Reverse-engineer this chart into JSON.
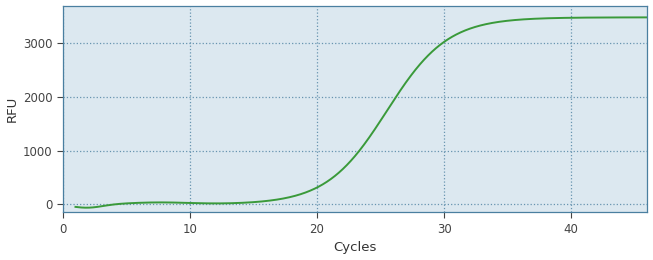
{
  "title": "",
  "xlabel": "Cycles",
  "ylabel": "RFU",
  "line_color": "#3a9a3a",
  "background_color": "#ffffff",
  "plot_bg_color": "#dce8f0",
  "grid_color": "#4a7fa0",
  "spine_color": "#4a7fa0",
  "xlim": [
    0,
    46
  ],
  "ylim": [
    -150,
    3700
  ],
  "xticks": [
    0,
    10,
    20,
    30,
    40
  ],
  "yticks": [
    0,
    1000,
    2000,
    3000
  ],
  "sigmoid_L": 3480,
  "sigmoid_k": 0.42,
  "sigmoid_x0": 25.5,
  "line_width": 1.4
}
